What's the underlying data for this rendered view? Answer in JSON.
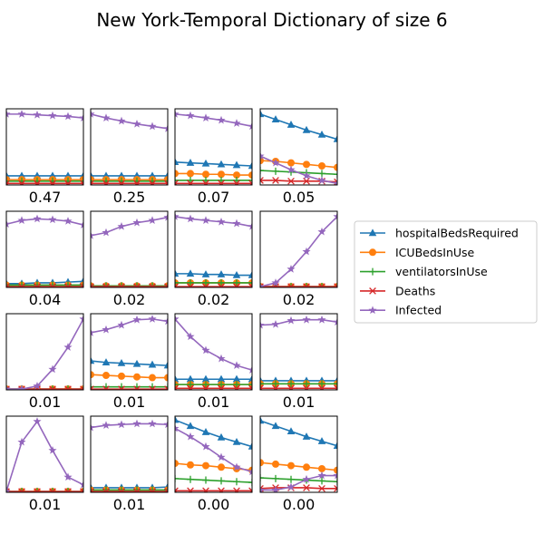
{
  "chart_data": {
    "type": "line",
    "title": "New York-Temporal Dictionary of size 6",
    "grid": false,
    "legend_placement": "right",
    "series_meta": [
      {
        "name": "hospitalBedsRequired",
        "color": "#1f77b4",
        "marker": "triangle"
      },
      {
        "name": "ICUBedsInUse",
        "color": "#ff7f0e",
        "marker": "circle"
      },
      {
        "name": "ventilatorsInUse",
        "color": "#2ca02c",
        "marker": "plus"
      },
      {
        "name": "Deaths",
        "color": "#d62728",
        "marker": "x"
      },
      {
        "name": "Infected",
        "color": "#9467bd",
        "marker": "star"
      }
    ],
    "x": [
      0,
      1,
      2,
      3,
      4,
      5
    ],
    "panels": [
      {
        "label": "0.47",
        "series": [
          [
            0.12,
            0.12,
            0.12,
            0.12,
            0.12,
            0.12
          ],
          [
            0.07,
            0.07,
            0.07,
            0.07,
            0.07,
            0.07
          ],
          [
            0.05,
            0.05,
            0.05,
            0.05,
            0.05,
            0.05
          ],
          [
            0.02,
            0.02,
            0.02,
            0.02,
            0.02,
            0.02
          ],
          [
            0.93,
            0.93,
            0.92,
            0.91,
            0.9,
            0.88
          ]
        ]
      },
      {
        "label": "0.25",
        "series": [
          [
            0.12,
            0.12,
            0.12,
            0.12,
            0.12,
            0.12
          ],
          [
            0.07,
            0.07,
            0.07,
            0.07,
            0.07,
            0.07
          ],
          [
            0.05,
            0.05,
            0.05,
            0.05,
            0.05,
            0.05
          ],
          [
            0.02,
            0.02,
            0.02,
            0.02,
            0.02,
            0.02
          ],
          [
            0.93,
            0.88,
            0.84,
            0.8,
            0.77,
            0.74
          ]
        ]
      },
      {
        "label": "0.07",
        "series": [
          [
            0.3,
            0.29,
            0.28,
            0.27,
            0.26,
            0.25
          ],
          [
            0.15,
            0.15,
            0.14,
            0.14,
            0.13,
            0.13
          ],
          [
            0.06,
            0.06,
            0.06,
            0.06,
            0.06,
            0.06
          ],
          [
            0.02,
            0.02,
            0.02,
            0.02,
            0.02,
            0.02
          ],
          [
            0.93,
            0.91,
            0.88,
            0.85,
            0.81,
            0.77
          ]
        ]
      },
      {
        "label": "0.05",
        "series": [
          [
            0.93,
            0.86,
            0.79,
            0.72,
            0.66,
            0.6
          ],
          [
            0.32,
            0.31,
            0.29,
            0.27,
            0.25,
            0.23
          ],
          [
            0.19,
            0.18,
            0.17,
            0.16,
            0.15,
            0.14
          ],
          [
            0.06,
            0.06,
            0.05,
            0.05,
            0.05,
            0.04
          ],
          [
            0.38,
            0.29,
            0.2,
            0.12,
            0.06,
            0.02
          ]
        ]
      },
      {
        "label": "0.04",
        "series": [
          [
            0.05,
            0.05,
            0.06,
            0.06,
            0.07,
            0.08
          ],
          [
            0.03,
            0.03,
            0.03,
            0.03,
            0.03,
            0.03
          ],
          [
            0.03,
            0.03,
            0.03,
            0.03,
            0.03,
            0.03
          ],
          [
            0.01,
            0.01,
            0.01,
            0.01,
            0.01,
            0.01
          ],
          [
            0.83,
            0.88,
            0.9,
            0.89,
            0.87,
            0.82
          ]
        ]
      },
      {
        "label": "0.02",
        "series": [
          [
            0.02,
            0.02,
            0.02,
            0.02,
            0.02,
            0.02
          ],
          [
            0.02,
            0.02,
            0.02,
            0.02,
            0.02,
            0.02
          ],
          [
            0.02,
            0.02,
            0.02,
            0.02,
            0.02,
            0.02
          ],
          [
            0.01,
            0.01,
            0.01,
            0.01,
            0.01,
            0.01
          ],
          [
            0.68,
            0.72,
            0.8,
            0.85,
            0.88,
            0.92
          ]
        ]
      },
      {
        "label": "0.02",
        "series": [
          [
            0.18,
            0.18,
            0.17,
            0.17,
            0.16,
            0.16
          ],
          [
            0.06,
            0.06,
            0.06,
            0.06,
            0.06,
            0.06
          ],
          [
            0.06,
            0.06,
            0.06,
            0.06,
            0.06,
            0.06
          ],
          [
            0.01,
            0.01,
            0.01,
            0.01,
            0.01,
            0.01
          ],
          [
            0.93,
            0.9,
            0.88,
            0.86,
            0.84,
            0.8
          ]
        ]
      },
      {
        "label": "0.02",
        "series": [
          [
            0.01,
            0.01,
            0.01,
            0.01,
            0.01,
            0.01
          ],
          [
            0.01,
            0.01,
            0.01,
            0.01,
            0.01,
            0.01
          ],
          [
            0.01,
            0.01,
            0.01,
            0.01,
            0.01,
            0.01
          ],
          [
            0.01,
            0.01,
            0.01,
            0.01,
            0.01,
            0.01
          ],
          [
            0.01,
            0.06,
            0.24,
            0.47,
            0.73,
            0.93
          ]
        ]
      },
      {
        "label": "0.01",
        "series": [
          [
            0.01,
            0.01,
            0.01,
            0.01,
            0.01,
            0.01
          ],
          [
            0.01,
            0.01,
            0.01,
            0.01,
            0.01,
            0.01
          ],
          [
            0.01,
            0.01,
            0.01,
            0.01,
            0.01,
            0.01
          ],
          [
            0.01,
            0.01,
            0.01,
            0.01,
            0.01,
            0.01
          ],
          [
            0.01,
            0.01,
            0.05,
            0.27,
            0.56,
            0.93
          ]
        ]
      },
      {
        "label": "0.01",
        "series": [
          [
            0.38,
            0.36,
            0.35,
            0.34,
            0.33,
            0.32
          ],
          [
            0.2,
            0.19,
            0.18,
            0.17,
            0.16,
            0.16
          ],
          [
            0.04,
            0.04,
            0.04,
            0.04,
            0.04,
            0.04
          ],
          [
            0.01,
            0.01,
            0.01,
            0.01,
            0.01,
            0.01
          ],
          [
            0.75,
            0.79,
            0.85,
            0.92,
            0.93,
            0.9
          ]
        ]
      },
      {
        "label": "0.01",
        "series": [
          [
            0.14,
            0.14,
            0.14,
            0.14,
            0.14,
            0.14
          ],
          [
            0.07,
            0.07,
            0.07,
            0.07,
            0.07,
            0.07
          ],
          [
            0.07,
            0.07,
            0.07,
            0.07,
            0.07,
            0.07
          ],
          [
            0.02,
            0.02,
            0.02,
            0.02,
            0.02,
            0.02
          ],
          [
            0.93,
            0.7,
            0.52,
            0.41,
            0.32,
            0.26
          ]
        ]
      },
      {
        "label": "0.01",
        "series": [
          [
            0.12,
            0.12,
            0.12,
            0.12,
            0.12,
            0.12
          ],
          [
            0.08,
            0.08,
            0.08,
            0.08,
            0.08,
            0.08
          ],
          [
            0.08,
            0.08,
            0.08,
            0.08,
            0.08,
            0.08
          ],
          [
            0.02,
            0.02,
            0.02,
            0.02,
            0.02,
            0.02
          ],
          [
            0.85,
            0.86,
            0.91,
            0.92,
            0.92,
            0.89
          ]
        ]
      },
      {
        "label": "0.01",
        "series": [
          [
            0.01,
            0.01,
            0.01,
            0.01,
            0.01,
            0.01
          ],
          [
            0.01,
            0.01,
            0.01,
            0.01,
            0.01,
            0.01
          ],
          [
            0.01,
            0.01,
            0.01,
            0.01,
            0.01,
            0.01
          ],
          [
            0.01,
            0.01,
            0.01,
            0.01,
            0.01,
            0.01
          ],
          [
            0.01,
            0.66,
            0.93,
            0.55,
            0.2,
            0.1
          ]
        ]
      },
      {
        "label": "0.01",
        "series": [
          [
            0.06,
            0.06,
            0.06,
            0.06,
            0.06,
            0.07
          ],
          [
            0.03,
            0.03,
            0.03,
            0.03,
            0.03,
            0.03
          ],
          [
            0.03,
            0.03,
            0.03,
            0.03,
            0.03,
            0.03
          ],
          [
            0.01,
            0.01,
            0.01,
            0.01,
            0.01,
            0.01
          ],
          [
            0.85,
            0.88,
            0.89,
            0.9,
            0.9,
            0.89
          ]
        ]
      },
      {
        "label": "0.00",
        "series": [
          [
            0.95,
            0.87,
            0.79,
            0.72,
            0.66,
            0.6
          ],
          [
            0.38,
            0.36,
            0.35,
            0.33,
            0.31,
            0.29
          ],
          [
            0.18,
            0.17,
            0.16,
            0.15,
            0.14,
            0.13
          ],
          [
            0.02,
            0.02,
            0.02,
            0.02,
            0.02,
            0.02
          ],
          [
            0.84,
            0.73,
            0.6,
            0.46,
            0.33,
            0.27
          ]
        ]
      },
      {
        "label": "0.00",
        "series": [
          [
            0.94,
            0.87,
            0.8,
            0.73,
            0.67,
            0.61
          ],
          [
            0.39,
            0.37,
            0.35,
            0.33,
            0.31,
            0.29
          ],
          [
            0.19,
            0.18,
            0.17,
            0.16,
            0.15,
            0.14
          ],
          [
            0.05,
            0.06,
            0.06,
            0.06,
            0.05,
            0.05
          ],
          [
            0.03,
            0.03,
            0.07,
            0.17,
            0.22,
            0.22
          ]
        ]
      }
    ]
  }
}
